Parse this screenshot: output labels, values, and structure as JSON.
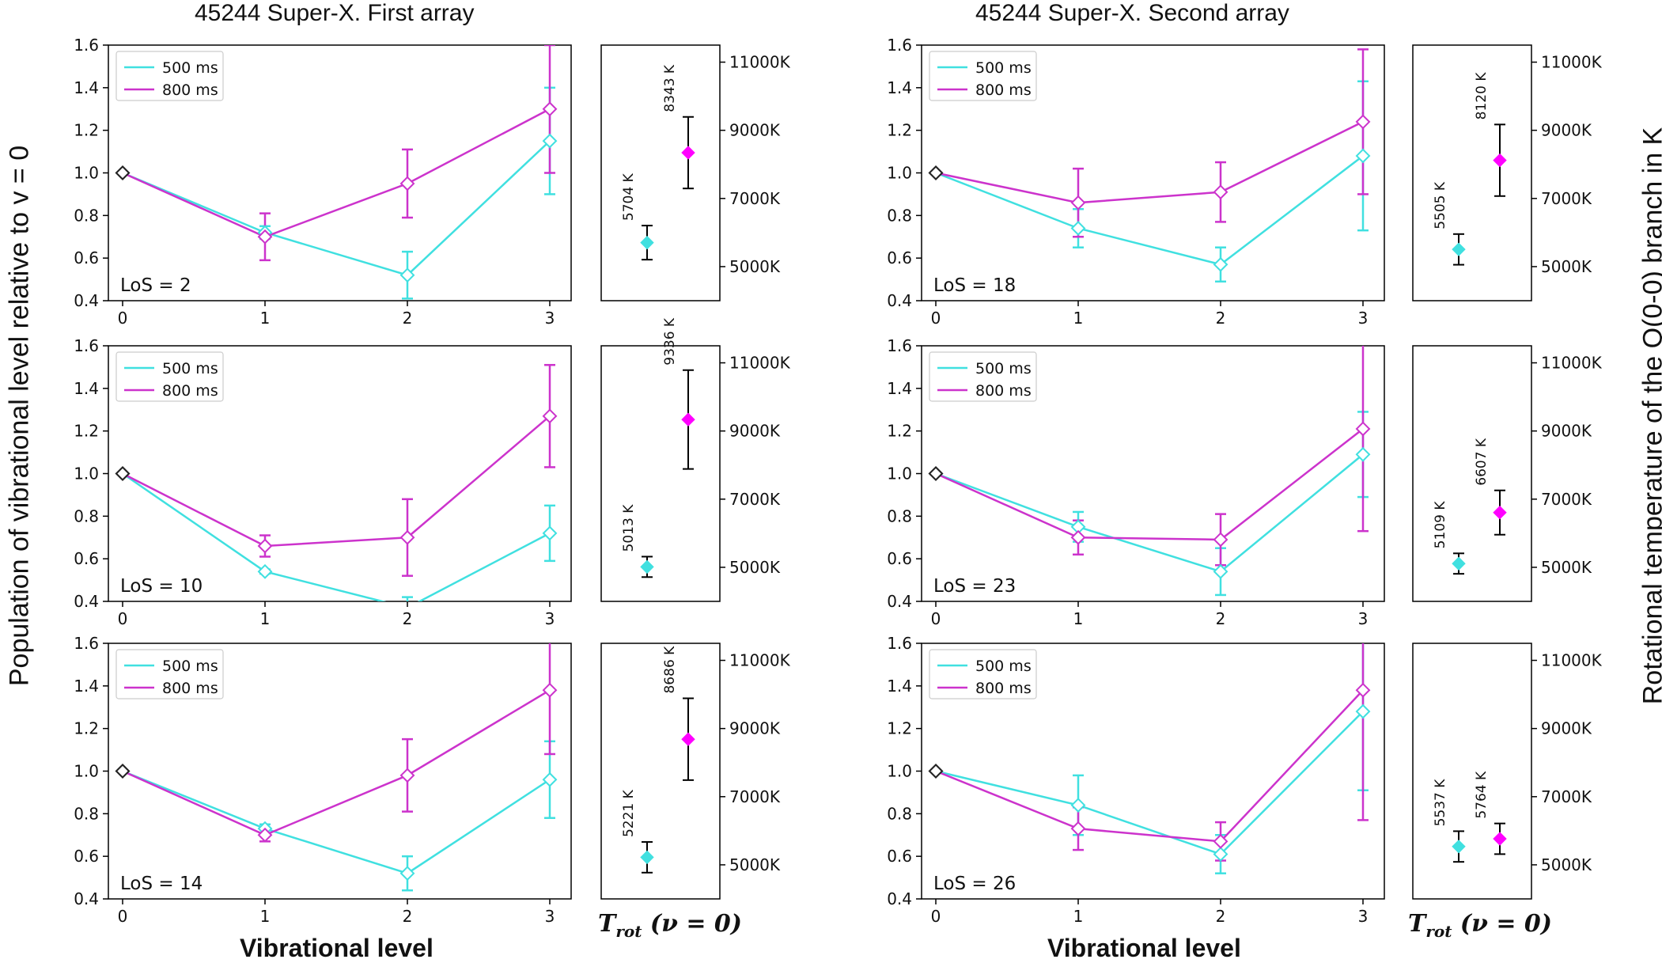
{
  "titles": {
    "left": "45244 Super-X.  First array",
    "right": "45244 Super-X.  Second array"
  },
  "labels": {
    "ylabel_left": "Population of vibrational level relative to v = 0",
    "ylabel_right": "Rotational temperature of the Q(0-0) branch in K",
    "xlabel": "Vibrational level",
    "trot_main": "T",
    "trot_sub": "rot",
    "trot_rest": " (ν = 0)"
  },
  "colors": {
    "s500": "#40e0e0",
    "s800": "#cc33cc",
    "s800_marker": "#ff00ff",
    "errorbar_black": "#000000"
  },
  "chart_data": [
    {
      "type": "line",
      "los_label": "LoS = 2",
      "column": "First array",
      "x": [
        0,
        1,
        2,
        3
      ],
      "series": [
        {
          "name": "500 ms",
          "values": [
            1.0,
            0.72,
            0.52,
            1.15
          ],
          "err": [
            0,
            0.03,
            0.11,
            0.25
          ]
        },
        {
          "name": "800 ms",
          "values": [
            1.0,
            0.7,
            0.95,
            1.3
          ],
          "err": [
            0,
            0.11,
            0.16,
            0.3
          ]
        }
      ],
      "xlim": [
        -0.1,
        3.15
      ],
      "ylim": [
        0.4,
        1.6
      ],
      "xticks": [
        "0",
        "1",
        "2",
        "3"
      ],
      "yticks": [
        "0.4",
        "0.6",
        "0.8",
        "1.0",
        "1.2",
        "1.4",
        "1.6"
      ],
      "legend": "top-left",
      "trot": {
        "ylim": [
          4000,
          11500
        ],
        "yticks": [
          "5000K",
          "7000K",
          "9000K",
          "11000K"
        ],
        "points": [
          {
            "series": "500 ms",
            "value": 5704,
            "err": 500,
            "label": "5704 K"
          },
          {
            "series": "800 ms",
            "value": 8343,
            "err": 1050,
            "label": "8343 K"
          }
        ]
      }
    },
    {
      "type": "line",
      "los_label": "LoS = 18",
      "column": "Second array",
      "x": [
        0,
        1,
        2,
        3
      ],
      "series": [
        {
          "name": "500 ms",
          "values": [
            1.0,
            0.74,
            0.57,
            1.08
          ],
          "err": [
            0,
            0.09,
            0.08,
            0.35
          ]
        },
        {
          "name": "800 ms",
          "values": [
            1.0,
            0.86,
            0.91,
            1.24
          ],
          "err": [
            0,
            0.16,
            0.14,
            0.34
          ]
        }
      ],
      "xlim": [
        -0.1,
        3.15
      ],
      "ylim": [
        0.4,
        1.6
      ],
      "xticks": [
        "0",
        "1",
        "2",
        "3"
      ],
      "yticks": [
        "0.4",
        "0.6",
        "0.8",
        "1.0",
        "1.2",
        "1.4",
        "1.6"
      ],
      "legend": "top-left",
      "trot": {
        "ylim": [
          4000,
          11500
        ],
        "yticks": [
          "5000K",
          "7000K",
          "9000K",
          "11000K"
        ],
        "points": [
          {
            "series": "500 ms",
            "value": 5505,
            "err": 450,
            "label": "5505 K"
          },
          {
            "series": "800 ms",
            "value": 8120,
            "err": 1050,
            "label": "8120 K"
          }
        ]
      }
    },
    {
      "type": "line",
      "los_label": "LoS = 10",
      "column": "First array",
      "x": [
        0,
        1,
        2,
        3
      ],
      "series": [
        {
          "name": "500 ms",
          "values": [
            1.0,
            0.54,
            0.37,
            0.72
          ],
          "err": [
            0,
            0.01,
            0.05,
            0.13
          ]
        },
        {
          "name": "800 ms",
          "values": [
            1.0,
            0.66,
            0.7,
            1.27
          ],
          "err": [
            0,
            0.05,
            0.18,
            0.24
          ]
        }
      ],
      "xlim": [
        -0.1,
        3.15
      ],
      "ylim": [
        0.4,
        1.6
      ],
      "xticks": [
        "0",
        "1",
        "2",
        "3"
      ],
      "yticks": [
        "0.4",
        "0.6",
        "0.8",
        "1.0",
        "1.2",
        "1.4",
        "1.6"
      ],
      "legend": "top-left",
      "trot": {
        "ylim": [
          4000,
          11500
        ],
        "yticks": [
          "5000K",
          "7000K",
          "9000K",
          "11000K"
        ],
        "points": [
          {
            "series": "500 ms",
            "value": 5013,
            "err": 300,
            "label": "5013 K"
          },
          {
            "series": "800 ms",
            "value": 9336,
            "err": 1450,
            "label": "9336 K"
          }
        ]
      }
    },
    {
      "type": "line",
      "los_label": "LoS = 23",
      "column": "Second array",
      "x": [
        0,
        1,
        2,
        3
      ],
      "series": [
        {
          "name": "500 ms",
          "values": [
            1.0,
            0.75,
            0.54,
            1.09
          ],
          "err": [
            0,
            0.07,
            0.11,
            0.2
          ]
        },
        {
          "name": "800 ms",
          "values": [
            1.0,
            0.7,
            0.69,
            1.21
          ],
          "err": [
            0,
            0.08,
            0.12,
            0.48
          ]
        }
      ],
      "xlim": [
        -0.1,
        3.15
      ],
      "ylim": [
        0.4,
        1.6
      ],
      "xticks": [
        "0",
        "1",
        "2",
        "3"
      ],
      "yticks": [
        "0.4",
        "0.6",
        "0.8",
        "1.0",
        "1.2",
        "1.4",
        "1.6"
      ],
      "legend": "top-left",
      "trot": {
        "ylim": [
          4000,
          11500
        ],
        "yticks": [
          "5000K",
          "7000K",
          "9000K",
          "11000K"
        ],
        "points": [
          {
            "series": "500 ms",
            "value": 5109,
            "err": 300,
            "label": "5109 K"
          },
          {
            "series": "800 ms",
            "value": 6607,
            "err": 650,
            "label": "6607 K"
          }
        ]
      }
    },
    {
      "type": "line",
      "los_label": "LoS = 14",
      "column": "First array",
      "x": [
        0,
        1,
        2,
        3
      ],
      "series": [
        {
          "name": "500 ms",
          "values": [
            1.0,
            0.73,
            0.52,
            0.96
          ],
          "err": [
            0,
            0.02,
            0.08,
            0.18
          ]
        },
        {
          "name": "800 ms",
          "values": [
            1.0,
            0.7,
            0.98,
            1.38
          ],
          "err": [
            0,
            0.03,
            0.17,
            0.3
          ]
        }
      ],
      "xlim": [
        -0.1,
        3.15
      ],
      "ylim": [
        0.4,
        1.6
      ],
      "xticks": [
        "0",
        "1",
        "2",
        "3"
      ],
      "yticks": [
        "0.4",
        "0.6",
        "0.8",
        "1.0",
        "1.2",
        "1.4",
        "1.6"
      ],
      "legend": "top-left",
      "trot": {
        "ylim": [
          4000,
          11500
        ],
        "yticks": [
          "5000K",
          "7000K",
          "9000K",
          "11000K"
        ],
        "points": [
          {
            "series": "500 ms",
            "value": 5221,
            "err": 450,
            "label": "5221 K"
          },
          {
            "series": "800 ms",
            "value": 8686,
            "err": 1200,
            "label": "8686 K"
          }
        ]
      }
    },
    {
      "type": "line",
      "los_label": "LoS = 26",
      "column": "Second array",
      "x": [
        0,
        1,
        2,
        3
      ],
      "series": [
        {
          "name": "500 ms",
          "values": [
            1.0,
            0.84,
            0.61,
            1.28
          ],
          "err": [
            0,
            0.14,
            0.09,
            0.37
          ]
        },
        {
          "name": "800 ms",
          "values": [
            1.0,
            0.73,
            0.67,
            1.38
          ],
          "err": [
            0,
            0.1,
            0.09,
            0.61
          ]
        }
      ],
      "xlim": [
        -0.1,
        3.15
      ],
      "ylim": [
        0.4,
        1.6
      ],
      "xticks": [
        "0",
        "1",
        "2",
        "3"
      ],
      "yticks": [
        "0.4",
        "0.6",
        "0.8",
        "1.0",
        "1.2",
        "1.4",
        "1.6"
      ],
      "legend": "top-left",
      "trot": {
        "ylim": [
          4000,
          11500
        ],
        "yticks": [
          "5000K",
          "7000K",
          "9000K",
          "11000K"
        ],
        "points": [
          {
            "series": "500 ms",
            "value": 5537,
            "err": 450,
            "label": "5537 K"
          },
          {
            "series": "800 ms",
            "value": 5764,
            "err": 450,
            "label": "5764 K"
          }
        ]
      }
    }
  ]
}
